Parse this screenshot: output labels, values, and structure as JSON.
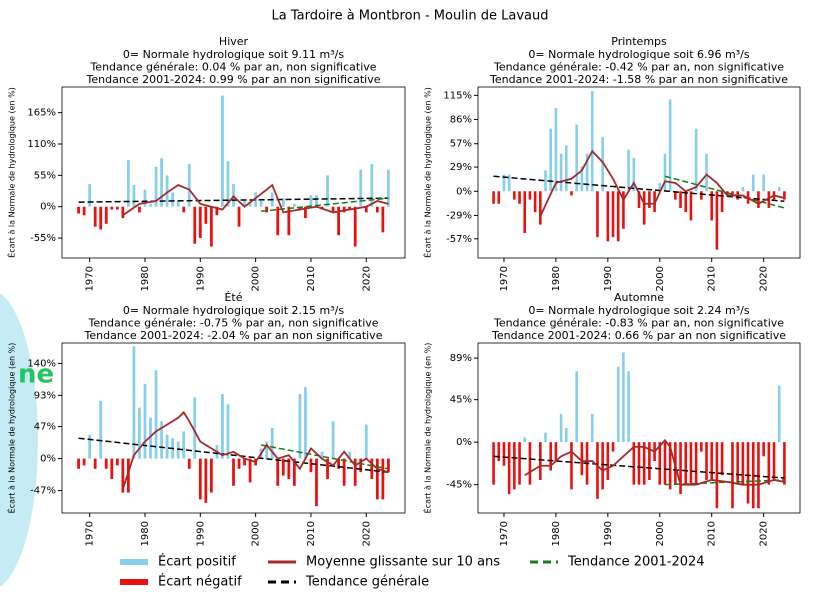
{
  "title": "La Tardoire à Montbron - Moulin de Lavaud",
  "overlay_text": "ne",
  "legend": [
    {
      "name": "Écart positif",
      "color": "#87ceeb"
    },
    {
      "name": "Écart négatif",
      "color": "#e8110f"
    },
    {
      "name": "Moyenne glissante sur 10 ans",
      "color": "#a52a2a"
    },
    {
      "name": "Tendance générale",
      "color": "#000000"
    },
    {
      "name": "Tendance 2001-2024",
      "color": "#1a7a1a"
    }
  ],
  "chart_data": [
    {
      "type": "bar",
      "title": "Hiver",
      "subtitle": [
        "0= Normale hydrologique soit 9.11 m³/s",
        "Tendance générale: 0.04 % par an, non significative",
        "Tendance 2001-2024: 0.99 % par an non significative"
      ],
      "y_label": "Écart à la Normale de hydrologique (en %)",
      "xlim": [
        1965,
        2027
      ],
      "xticks": [
        1970,
        1980,
        1990,
        2000,
        2010,
        2020
      ],
      "ylim": [
        -90,
        210
      ],
      "yticks": [
        {
          "value": -55,
          "label": "-55%"
        },
        {
          "value": 0,
          "label": "0%"
        },
        {
          "value": 55,
          "label": "55%"
        },
        {
          "value": 110,
          "label": "110%"
        },
        {
          "value": 165,
          "label": "165%"
        }
      ],
      "x": [
        1968,
        1969,
        1970,
        1971,
        1972,
        1973,
        1974,
        1975,
        1976,
        1977,
        1978,
        1979,
        1980,
        1981,
        1982,
        1983,
        1984,
        1985,
        1986,
        1987,
        1988,
        1989,
        1990,
        1991,
        1992,
        1993,
        1994,
        1995,
        1996,
        1997,
        1998,
        1999,
        2000,
        2001,
        2002,
        2003,
        2004,
        2005,
        2006,
        2007,
        2008,
        2009,
        2010,
        2011,
        2012,
        2013,
        2014,
        2015,
        2016,
        2017,
        2018,
        2019,
        2020,
        2021,
        2022,
        2023,
        2024
      ],
      "values": [
        -12,
        -15,
        40,
        -35,
        -40,
        -30,
        -5,
        -5,
        -20,
        82,
        38,
        -10,
        30,
        5,
        70,
        85,
        55,
        25,
        10,
        -10,
        75,
        -65,
        -55,
        -30,
        -70,
        -15,
        195,
        80,
        40,
        -35,
        10,
        5,
        25,
        10,
        -10,
        25,
        -50,
        15,
        -50,
        5,
        -5,
        -20,
        20,
        20,
        -5,
        55,
        -10,
        -50,
        -10,
        -5,
        -70,
        65,
        -10,
        75,
        -10,
        -45,
        65
      ],
      "moving_average": {
        "x": [
          1976,
          1979,
          1982,
          1984,
          1986,
          1988,
          1990,
          1992,
          1994,
          1996,
          1998,
          2000,
          2002,
          2003,
          2005,
          2008,
          2011,
          2014,
          2017,
          2020,
          2022,
          2024
        ],
        "values": [
          -15,
          5,
          10,
          25,
          38,
          30,
          5,
          0,
          -5,
          18,
          0,
          15,
          30,
          38,
          -10,
          -5,
          0,
          -10,
          -5,
          0,
          10,
          5
        ]
      },
      "trend": {
        "x": [
          1968,
          2024
        ],
        "values": [
          8,
          15
        ]
      },
      "recent_trend": {
        "x": [
          2001,
          2024
        ],
        "values": [
          -8,
          15
        ]
      }
    },
    {
      "type": "bar",
      "title": "Printemps",
      "subtitle": [
        "0= Normale hydrologique soit 6.96 m³/s",
        "Tendance générale: -0.42 % par an, non significative",
        "Tendance 2001-2024: -1.58 % par an non significative"
      ],
      "y_label": "Écart à la Normale de hydrologique (en %)",
      "xlim": [
        1965,
        2027
      ],
      "xticks": [
        1970,
        1980,
        1990,
        2000,
        2010,
        2020
      ],
      "ylim": [
        -80,
        125
      ],
      "yticks": [
        {
          "value": -57,
          "label": "-57%"
        },
        {
          "value": -29,
          "label": "-29%"
        },
        {
          "value": 0,
          "label": "0%"
        },
        {
          "value": 29,
          "label": "29%"
        },
        {
          "value": 57,
          "label": "57%"
        },
        {
          "value": 86,
          "label": "86%"
        },
        {
          "value": 115,
          "label": "115%"
        }
      ],
      "x": [
        1968,
        1969,
        1970,
        1971,
        1972,
        1973,
        1974,
        1975,
        1976,
        1977,
        1978,
        1979,
        1980,
        1981,
        1982,
        1983,
        1984,
        1985,
        1986,
        1987,
        1988,
        1989,
        1990,
        1991,
        1992,
        1993,
        1994,
        1995,
        1996,
        1997,
        1998,
        1999,
        2000,
        2001,
        2002,
        2003,
        2004,
        2005,
        2006,
        2007,
        2008,
        2009,
        2010,
        2011,
        2012,
        2013,
        2014,
        2015,
        2016,
        2017,
        2018,
        2019,
        2020,
        2021,
        2022,
        2023,
        2024
      ],
      "values": [
        -15,
        -15,
        20,
        20,
        -10,
        -15,
        -50,
        -10,
        -25,
        -40,
        25,
        75,
        100,
        45,
        55,
        -5,
        80,
        30,
        45,
        120,
        -55,
        65,
        -60,
        -55,
        -60,
        -45,
        50,
        40,
        -20,
        -40,
        -20,
        -25,
        10,
        45,
        110,
        -10,
        -20,
        -25,
        -35,
        75,
        -10,
        45,
        -35,
        -70,
        -25,
        -5,
        -5,
        -10,
        5,
        -15,
        20,
        -20,
        20,
        -20,
        -10,
        5,
        -10
      ],
      "moving_average": {
        "x": [
          1977,
          1980,
          1983,
          1985,
          1987,
          1989,
          1991,
          1993,
          1995,
          1997,
          1999,
          2001,
          2003,
          2005,
          2007,
          2009,
          2011,
          2013,
          2016,
          2019,
          2022,
          2024
        ],
        "values": [
          -30,
          10,
          15,
          25,
          48,
          35,
          15,
          -10,
          10,
          -15,
          -15,
          12,
          10,
          0,
          5,
          20,
          10,
          -5,
          -5,
          -15,
          -5,
          -8
        ]
      },
      "trend": {
        "x": [
          1968,
          2024
        ],
        "values": [
          18,
          -12
        ]
      },
      "recent_trend": {
        "x": [
          2001,
          2024
        ],
        "values": [
          18,
          -20
        ]
      }
    },
    {
      "type": "bar",
      "title": "Été",
      "subtitle": [
        "0= Normale hydrologique soit 2.15 m³/s",
        "Tendance générale: -0.75 % par an, non significative",
        "Tendance 2001-2024: -2.04 % par an non significative"
      ],
      "y_label": "Écart à la Normale de hydrologique (en %)",
      "xlim": [
        1965,
        2027
      ],
      "xticks": [
        1970,
        1980,
        1990,
        2000,
        2010,
        2020
      ],
      "ylim": [
        -80,
        170
      ],
      "yticks": [
        {
          "value": -47,
          "label": "-47%"
        },
        {
          "value": 0,
          "label": "0%"
        },
        {
          "value": 47,
          "label": "47%"
        },
        {
          "value": 93,
          "label": "93%"
        },
        {
          "value": 140,
          "label": "140%"
        }
      ],
      "x": [
        1968,
        1969,
        1970,
        1971,
        1972,
        1973,
        1974,
        1975,
        1976,
        1977,
        1978,
        1979,
        1980,
        1981,
        1982,
        1983,
        1984,
        1985,
        1986,
        1987,
        1988,
        1989,
        1990,
        1991,
        1992,
        1993,
        1994,
        1995,
        1996,
        1997,
        1998,
        1999,
        2000,
        2001,
        2002,
        2003,
        2004,
        2005,
        2006,
        2007,
        2008,
        2009,
        2010,
        2011,
        2012,
        2013,
        2014,
        2015,
        2016,
        2017,
        2018,
        2019,
        2020,
        2021,
        2022,
        2023,
        2024
      ],
      "values": [
        -15,
        -10,
        35,
        -15,
        85,
        -15,
        -30,
        -10,
        -50,
        -50,
        165,
        75,
        110,
        60,
        130,
        55,
        35,
        30,
        25,
        40,
        -15,
        90,
        -60,
        -65,
        -50,
        20,
        95,
        80,
        -40,
        -15,
        -10,
        -35,
        -10,
        15,
        25,
        45,
        -40,
        -25,
        -30,
        -40,
        95,
        105,
        -20,
        -70,
        10,
        -30,
        55,
        -15,
        -40,
        10,
        -40,
        -20,
        50,
        -30,
        -60,
        -60,
        -20
      ],
      "moving_average": {
        "x": [
          1976,
          1978,
          1980,
          1982,
          1984,
          1986,
          1987,
          1988,
          1990,
          1992,
          1994,
          1996,
          1998,
          2000,
          2002,
          2004,
          2006,
          2008,
          2010,
          2012,
          2014,
          2016,
          2018,
          2020,
          2022,
          2024
        ],
        "values": [
          -45,
          5,
          25,
          40,
          50,
          60,
          68,
          55,
          25,
          15,
          5,
          10,
          0,
          -5,
          20,
          0,
          5,
          -15,
          15,
          0,
          -10,
          10,
          -10,
          0,
          -15,
          -20
        ]
      },
      "trend": {
        "x": [
          1968,
          2024
        ],
        "values": [
          30,
          -20
        ]
      },
      "recent_trend": {
        "x": [
          2001,
          2024
        ],
        "values": [
          20,
          -15
        ]
      }
    },
    {
      "type": "bar",
      "title": "Automne",
      "subtitle": [
        "0= Normale hydrologique soit 2.24 m³/s",
        "Tendance générale: -0.83 % par an, non significative",
        "Tendance 2001-2024: 0.66 % par an non significative"
      ],
      "y_label": "Écart à la Normale de hydrologique (en %)",
      "xlim": [
        1965,
        2027
      ],
      "xticks": [
        1970,
        1980,
        1990,
        2000,
        2010,
        2020
      ],
      "ylim": [
        -75,
        105
      ],
      "yticks": [
        {
          "value": -45,
          "label": "-45%"
        },
        {
          "value": 0,
          "label": "0%"
        },
        {
          "value": 45,
          "label": "45%"
        },
        {
          "value": 89,
          "label": "89%"
        }
      ],
      "x": [
        1968,
        1969,
        1970,
        1971,
        1972,
        1973,
        1974,
        1975,
        1976,
        1977,
        1978,
        1979,
        1980,
        1981,
        1982,
        1983,
        1984,
        1985,
        1986,
        1987,
        1988,
        1989,
        1990,
        1991,
        1992,
        1993,
        1994,
        1995,
        1996,
        1997,
        1998,
        1999,
        2000,
        2001,
        2002,
        2003,
        2004,
        2005,
        2006,
        2007,
        2008,
        2009,
        2010,
        2011,
        2012,
        2013,
        2014,
        2015,
        2016,
        2017,
        2018,
        2019,
        2020,
        2021,
        2022,
        2023,
        2024
      ],
      "values": [
        -45,
        -20,
        -25,
        -55,
        -50,
        -45,
        5,
        -45,
        0,
        -40,
        10,
        -30,
        -20,
        30,
        15,
        -50,
        75,
        -35,
        -45,
        30,
        -60,
        -50,
        -40,
        -10,
        80,
        95,
        75,
        -45,
        -45,
        -45,
        -40,
        -20,
        -45,
        -45,
        -50,
        -45,
        -55,
        -45,
        -45,
        -45,
        -10,
        -40,
        -40,
        -70,
        -35,
        0,
        -70,
        -45,
        -45,
        -65,
        -70,
        -70,
        -15,
        -45,
        -40,
        60,
        -45
      ],
      "moving_average": {
        "x": [
          1974,
          1977,
          1979,
          1981,
          1983,
          1985,
          1987,
          1989,
          1991,
          1993,
          1995,
          1997,
          1999,
          2001,
          2002,
          2004,
          2007,
          2010,
          2013,
          2016,
          2019,
          2022,
          2024
        ],
        "values": [
          -35,
          -25,
          -25,
          -15,
          -10,
          -20,
          -20,
          -30,
          -25,
          -15,
          -5,
          -5,
          -10,
          2,
          -5,
          -45,
          -45,
          -40,
          -42,
          -45,
          -45,
          -40,
          -42
        ]
      },
      "trend": {
        "x": [
          1968,
          2024
        ],
        "values": [
          -15,
          -38
        ]
      },
      "recent_trend": {
        "x": [
          2001,
          2024
        ],
        "values": [
          -45,
          -40
        ]
      }
    }
  ]
}
